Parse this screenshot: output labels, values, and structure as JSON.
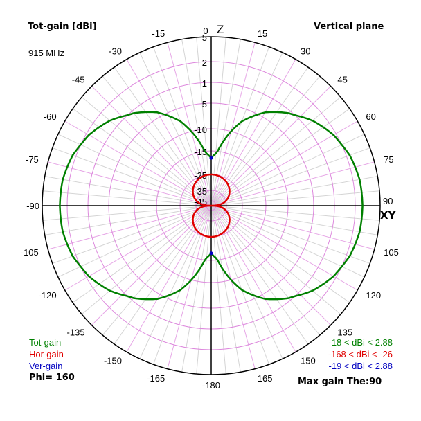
{
  "header": {
    "title": "Tot-gain [dBi]",
    "frequency": "915 MHz",
    "plane": "Vertical plane"
  },
  "axis_labels": {
    "top": "Z",
    "right": "XY"
  },
  "legend": {
    "tot_gain": {
      "label": "Tot-gain",
      "range": "-18 < dBi < 2.88",
      "color": "#008000"
    },
    "hor_gain": {
      "label": "Hor-gain",
      "range": "-168 < dBi < -26",
      "color": "#e00000"
    },
    "ver_gain": {
      "label": "Ver-gain",
      "range": "-19 < dBi < 2.88",
      "color": "#0000c0"
    },
    "phi": "Phi= 160",
    "max_gain": "Max gain The:90"
  },
  "chart_data": {
    "type": "polar",
    "title": "Tot-gain [dBi]",
    "subtitle": "Vertical plane, 915 MHz, Phi= 160",
    "angle_ticks": [
      0,
      15,
      30,
      45,
      60,
      75,
      90,
      105,
      120,
      135,
      150,
      165,
      -180,
      -165,
      -150,
      -135,
      -120,
      -105,
      -90,
      -75,
      -60,
      -45,
      -30,
      -15
    ],
    "radial_ticks_dbi": [
      5,
      2,
      -1,
      -5,
      -10,
      -15,
      -25,
      -35,
      -45
    ],
    "radial_tick_radius_px": [
      244,
      208,
      178,
      148,
      111,
      79,
      45,
      22,
      7
    ],
    "grid": true,
    "series": [
      {
        "name": "Tot-gain",
        "color": "#008000",
        "min_dbi": -18,
        "max_dbi": 2.88,
        "theta_deg": [
          0,
          5,
          10,
          15,
          20,
          30,
          40,
          50,
          60,
          70,
          80,
          90,
          100,
          110,
          120,
          130,
          140,
          150,
          160,
          165,
          170,
          175,
          180
        ],
        "gain_dbi": [
          -18,
          -16,
          -13,
          -10,
          -7.5,
          -4,
          -1.5,
          0.3,
          1.6,
          2.4,
          2.8,
          2.88,
          2.8,
          2.4,
          1.6,
          0.3,
          -1.5,
          -4,
          -7.5,
          -10,
          -13,
          -16,
          -18
        ]
      },
      {
        "name": "Hor-gain",
        "color": "#e00000",
        "min_dbi": -168,
        "max_dbi": -26,
        "theta_deg": [
          0,
          30,
          60,
          90,
          120,
          150,
          180
        ],
        "gain_dbi": [
          -26,
          -29,
          -38,
          -168,
          -38,
          -29,
          -26
        ]
      },
      {
        "name": "Ver-gain",
        "color": "#0000c0",
        "min_dbi": -19,
        "max_dbi": 2.88,
        "theta_deg": [
          0,
          90,
          180
        ],
        "gain_dbi": [
          -19,
          2.88,
          -19
        ]
      }
    ],
    "max_gain_theta": 90
  }
}
